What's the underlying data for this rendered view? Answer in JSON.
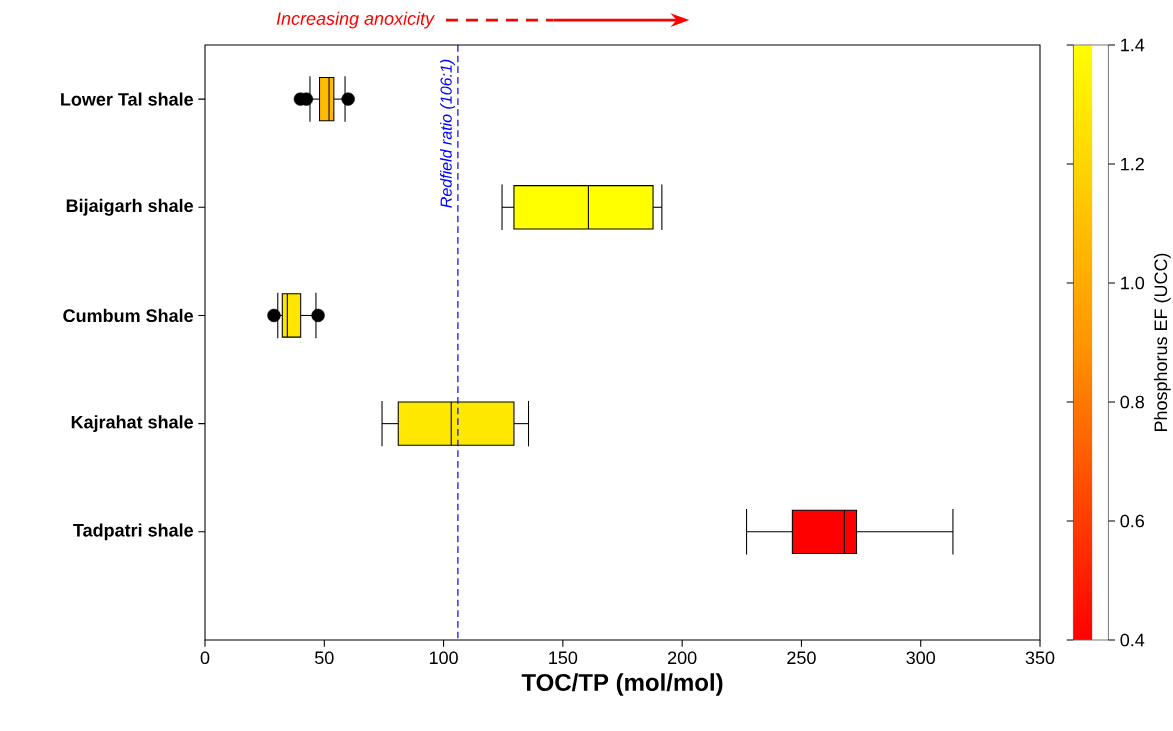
{
  "chart_data": {
    "type": "box",
    "orientation": "horizontal",
    "categories": [
      "Lower Tal shale",
      "Bijaigarh shale",
      "Cumbum Shale",
      "Kajrahat shale",
      "Tadpatri shale"
    ],
    "boxes": [
      {
        "low": 44,
        "q1": 48,
        "median": 52,
        "q3": 54,
        "high": 58.7,
        "outliers": [
          40,
          42.5,
          60
        ]
      },
      {
        "low": 124.5,
        "q1": 129.5,
        "median": 160.7,
        "q3": 187.8,
        "high": 191.5
      },
      {
        "low": 30.5,
        "q1": 32.4,
        "median": 34.5,
        "q3": 40.1,
        "high": 46.5,
        "outliers": [
          28.9,
          47.4
        ]
      },
      {
        "low": 74.2,
        "q1": 81,
        "median": 103.2,
        "q3": 129.5,
        "high": 135.6
      },
      {
        "low": 227,
        "q1": 246.2,
        "median": 268,
        "q3": 273.1,
        "high": 313.5
      }
    ],
    "colors": [
      "#ffbb00",
      "#ffff00",
      "#ffe600",
      "#ffe800",
      "#ff0000"
    ],
    "xlabel": "TOC/TP (mol/mol)",
    "xlim": [
      0,
      350
    ],
    "xticks": [
      0,
      50,
      100,
      150,
      200,
      250,
      300,
      350
    ],
    "clabel": "Phosphorus EF (UCC)",
    "clim": [
      0.4,
      1.4
    ],
    "cticks": [
      0.4,
      0.6,
      0.8,
      {
        "value": 1,
        "label": "1.0"
      },
      1.2,
      1.4
    ],
    "ref_lines": [
      {
        "axis": "x",
        "value": 106,
        "label": "Redfield ratio (106:1)",
        "color": "#0000ff",
        "line_style": "dashed"
      }
    ],
    "annotations": [
      "Increasing anoxicity"
    ],
    "marker": "circle"
  }
}
